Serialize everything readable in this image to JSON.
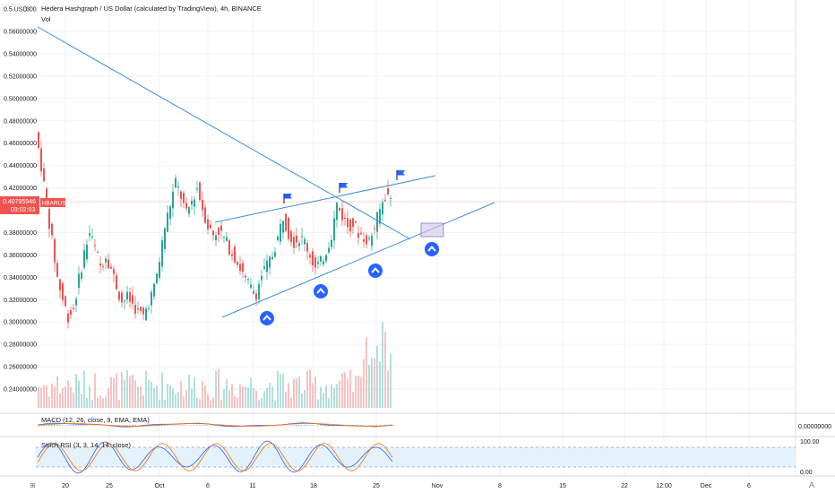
{
  "chart": {
    "title": "Hedera Hashgraph / US Dollar (calculated by TradingView), 4h, BINANCE",
    "currency_badge": "0.5 USD",
    "top_price_label": "300",
    "vol_label": "Vol",
    "price_tag": {
      "symbol": "HBARUSD",
      "price": "0.40795946",
      "countdown": "03:02:03"
    },
    "colors": {
      "up": "#26a69a",
      "down": "#ef5350",
      "trendline": "#3d8fd6",
      "macd": "#2962ff",
      "signal": "#ff6d00",
      "stoch_k": "#2962ff",
      "stoch_d": "#ff6d00",
      "stoch_band": "#e3f2fd",
      "arrow": "#2962ff"
    }
  },
  "indicators": {
    "macd_label": "MACD (12, 26, close, 9, EMA, EMA)",
    "macd_value": "0.00000000",
    "stoch_label": "Stoch RSI (3, 3, 14, 14, close)",
    "stoch_upper": "100.00",
    "stoch_lower": "0.00"
  },
  "icons": {
    "flag": "flag-icon",
    "arrow": "arrow-up-circle-icon",
    "settings": "a-auto-scale-icon"
  },
  "chart_data": {
    "type": "candlestick",
    "y_ticks": [
      "0.56000000",
      "0.54000000",
      "0.52000000",
      "0.50000000",
      "0.48000000",
      "0.46000000",
      "0.44000000",
      "0.42000000",
      "0.38000000",
      "0.36000000",
      "0.34000000",
      "0.32000000",
      "0.30000000",
      "0.28000000",
      "0.26000000",
      "0.24000000"
    ],
    "x_ticks": [
      "20",
      "25",
      "Oct",
      "6",
      "11",
      "18",
      "25",
      "Nov",
      "8",
      "15",
      "22",
      "12:00",
      "Dec",
      "6"
    ],
    "ylim": [
      0.225,
      0.57
    ],
    "price_path": [
      [
        0,
        0.47
      ],
      [
        2,
        0.44
      ],
      [
        4,
        0.405
      ],
      [
        6,
        0.372
      ],
      [
        8,
        0.34
      ],
      [
        10,
        0.32
      ],
      [
        12,
        0.305
      ],
      [
        14,
        0.312
      ],
      [
        16,
        0.338
      ],
      [
        18,
        0.362
      ],
      [
        20,
        0.38
      ],
      [
        22,
        0.366
      ],
      [
        24,
        0.35
      ],
      [
        26,
        0.36
      ],
      [
        28,
        0.348
      ],
      [
        30,
        0.332
      ],
      [
        32,
        0.318
      ],
      [
        34,
        0.322
      ],
      [
        36,
        0.316
      ],
      [
        38,
        0.309
      ],
      [
        40,
        0.305
      ],
      [
        42,
        0.318
      ],
      [
        44,
        0.33
      ],
      [
        46,
        0.355
      ],
      [
        48,
        0.385
      ],
      [
        50,
        0.405
      ],
      [
        52,
        0.425
      ],
      [
        54,
        0.412
      ],
      [
        56,
        0.396
      ],
      [
        58,
        0.408
      ],
      [
        60,
        0.42
      ],
      [
        62,
        0.402
      ],
      [
        64,
        0.386
      ],
      [
        66,
        0.378
      ],
      [
        68,
        0.382
      ],
      [
        70,
        0.375
      ],
      [
        72,
        0.366
      ],
      [
        74,
        0.358
      ],
      [
        76,
        0.348
      ],
      [
        78,
        0.338
      ],
      [
        80,
        0.33
      ],
      [
        82,
        0.326
      ],
      [
        84,
        0.342
      ],
      [
        86,
        0.35
      ],
      [
        88,
        0.36
      ],
      [
        90,
        0.375
      ],
      [
        92,
        0.395
      ],
      [
        94,
        0.38
      ],
      [
        96,
        0.372
      ],
      [
        98,
        0.375
      ],
      [
        100,
        0.372
      ],
      [
        102,
        0.36
      ],
      [
        104,
        0.348
      ],
      [
        106,
        0.353
      ],
      [
        108,
        0.364
      ],
      [
        110,
        0.378
      ],
      [
        112,
        0.405
      ],
      [
        114,
        0.395
      ],
      [
        116,
        0.386
      ],
      [
        118,
        0.388
      ],
      [
        120,
        0.38
      ],
      [
        122,
        0.376
      ],
      [
        124,
        0.372
      ],
      [
        126,
        0.385
      ],
      [
        128,
        0.4
      ],
      [
        130,
        0.414
      ],
      [
        132,
        0.41
      ]
    ]
  }
}
